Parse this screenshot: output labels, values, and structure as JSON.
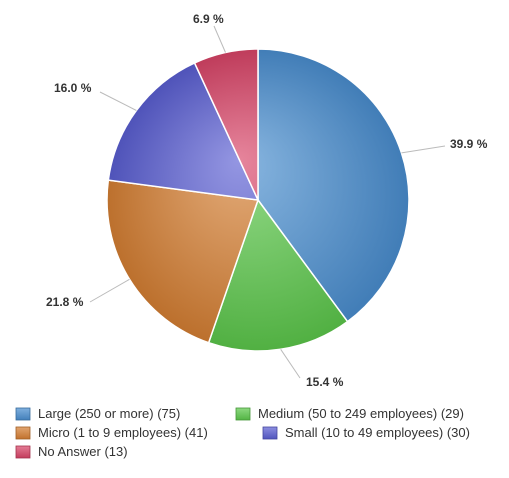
{
  "chart_data": {
    "type": "pie",
    "title": "",
    "slices": [
      {
        "name": "Large (250 or more) (75)",
        "value": 39.9,
        "label": "39.9 %",
        "color": "#4a8ed0"
      },
      {
        "name": "Medium (50 to 249 employees) (29)",
        "value": 15.4,
        "label": "15.4 %",
        "color": "#5cc84b"
      },
      {
        "name": "Micro (1 to 9 employees) (41)",
        "value": 21.8,
        "label": "21.8 %",
        "color": "#d67f33"
      },
      {
        "name": "Small (10 to 49 employees) (30)",
        "value": 16.0,
        "label": "16.0 %",
        "color": "#5a5ed2"
      },
      {
        "name": "No Answer (13)",
        "value": 6.9,
        "label": "6.9 %",
        "color": "#d94467"
      }
    ],
    "legend_position": "bottom",
    "legend_order": [
      0,
      1,
      2,
      3,
      4
    ],
    "start_angle": "12 o'clock, clockwise"
  }
}
